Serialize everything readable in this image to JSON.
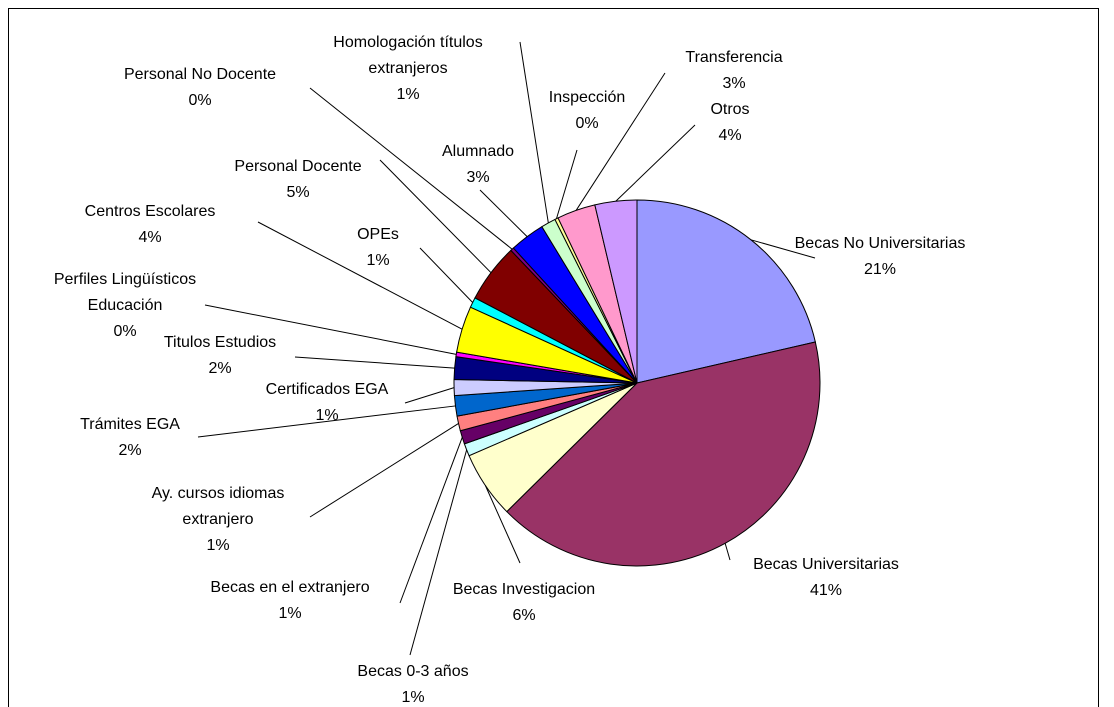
{
  "chart_data": {
    "type": "pie",
    "categories": [
      "Becas No Universitarias",
      "Becas Universitarias",
      "Becas Investigacion",
      "Becas 0-3 años",
      "Becas en el extranjero",
      "Ay. cursos idiomas extranjero",
      "Trámites EGA",
      "Certificados EGA",
      "Titulos Estudios",
      "Perfiles Lingüísticos Educación",
      "Centros Escolares",
      "OPEs",
      "Personal Docente",
      "Personal No Docente",
      "Alumnado",
      "Homologación títulos extranjeros",
      "Inspección",
      "Transferencia",
      "Otros"
    ],
    "values": [
      21.4,
      41.2,
      5.9,
      1.1,
      1.2,
      1.3,
      1.8,
      1.4,
      2.0,
      0.4,
      4.1,
      0.9,
      5.2,
      0.3,
      3.1,
      1.3,
      0.3,
      3.4,
      3.7
    ],
    "value_labels": [
      "21%",
      "41%",
      "6%",
      "1%",
      "1%",
      "1%",
      "2%",
      "1%",
      "2%",
      "0%",
      "4%",
      "1%",
      "5%",
      "0%",
      "3%",
      "1%",
      "0%",
      "3%",
      "4%"
    ],
    "colors": [
      "#9999ff",
      "#993366",
      "#ffffcc",
      "#ccffff",
      "#660066",
      "#ff8080",
      "#0066cc",
      "#ccccff",
      "#000080",
      "#ff00ff",
      "#ffff00",
      "#00ffff",
      "#800000",
      "#800080",
      "#0000ff",
      "#ccffcc",
      "#ffff99",
      "#ff99cc",
      "#cc99ff"
    ]
  }
}
